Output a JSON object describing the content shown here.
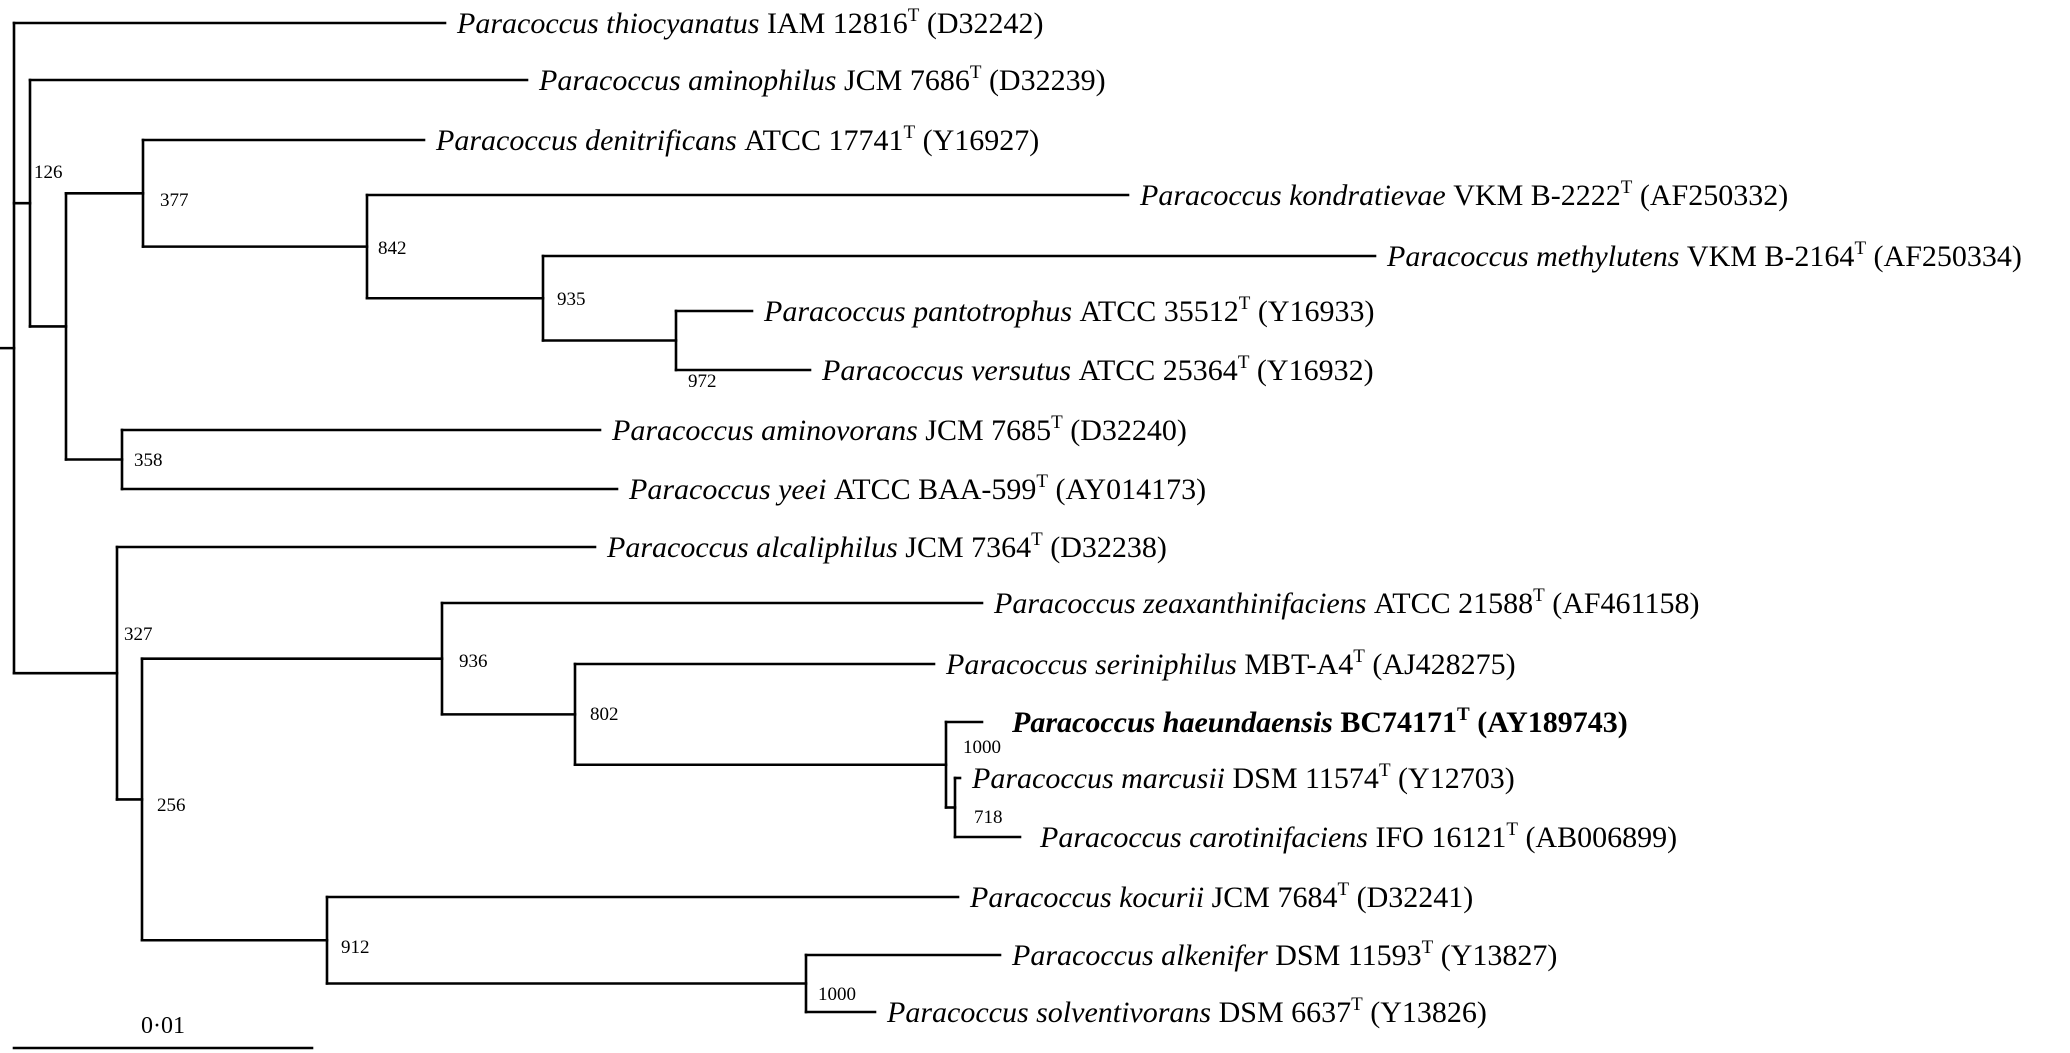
{
  "tree": {
    "leaves": [
      {
        "genus": "Paracoccus",
        "species": "thiocyanatus",
        "strain": "IAM 12816",
        "sup": "T",
        "accession": "(D32242)"
      },
      {
        "genus": "Paracoccus",
        "species": "aminophilus",
        "strain": "JCM 7686",
        "sup": "T",
        "accession": "(D32239)"
      },
      {
        "genus": "Paracoccus",
        "species": "denitrificans",
        "strain": "ATCC 17741",
        "sup": "T",
        "accession": "(Y16927)"
      },
      {
        "genus": "Paracoccus",
        "species": "kondratievae",
        "strain": "VKM B-2222",
        "sup": "T",
        "accession": "(AF250332)"
      },
      {
        "genus": "Paracoccus",
        "species": "methylutens",
        "strain": "VKM B-2164",
        "sup": "T",
        "accession": "(AF250334)"
      },
      {
        "genus": "Paracoccus",
        "species": "pantotrophus",
        "strain": "ATCC 35512",
        "sup": "T",
        "accession": "(Y16933)"
      },
      {
        "genus": "Paracoccus",
        "species": "versutus",
        "strain": "ATCC 25364",
        "sup": "T",
        "accession": "(Y16932)"
      },
      {
        "genus": "Paracoccus",
        "species": "aminovorans",
        "strain": "JCM 7685",
        "sup": "T",
        "accession": "(D32240)"
      },
      {
        "genus": "Paracoccus",
        "species": "yeei",
        "strain": "ATCC BAA-599",
        "sup": "T",
        "accession": "(AY014173)"
      },
      {
        "genus": "Paracoccus",
        "species": "alcaliphilus",
        "strain": "JCM 7364",
        "sup": "T",
        "accession": "(D32238)"
      },
      {
        "genus": "Paracoccus",
        "species": "zeaxanthinifaciens",
        "strain": "ATCC 21588",
        "sup": "T",
        "accession": "(AF461158)"
      },
      {
        "genus": "Paracoccus",
        "species": "seriniphilus",
        "strain": "MBT-A4",
        "sup": "T",
        "accession": "(AJ428275)"
      },
      {
        "genus": "Paracoccus",
        "species": "haeundaensis",
        "strain": "BC74171",
        "sup": "T",
        "accession": "(AY189743)",
        "bold": true
      },
      {
        "genus": "Paracoccus",
        "species": "marcusii",
        "strain": "DSM 11574",
        "sup": "T",
        "accession": "(Y12703)"
      },
      {
        "genus": "Paracoccus",
        "species": "carotinifaciens",
        "strain": "IFO 16121",
        "sup": "T",
        "accession": "(AB006899)"
      },
      {
        "genus": "Paracoccus",
        "species": "kocurii",
        "strain": "JCM 7684",
        "sup": "T",
        "accession": "(D32241)"
      },
      {
        "genus": "Paracoccus",
        "species": "alkenifer",
        "strain": "DSM 11593",
        "sup": "T",
        "accession": "(Y13827)"
      },
      {
        "genus": "Paracoccus",
        "species": "solventivorans",
        "strain": "DSM 6637",
        "sup": "T",
        "accession": "(Y13826)"
      }
    ],
    "bootstrap_values": [
      "126",
      "377",
      "842",
      "935",
      "972",
      "358",
      "327",
      "936",
      "802",
      "1000",
      "718",
      "256",
      "912",
      "1000"
    ],
    "scale_bar_label": "0·01"
  }
}
